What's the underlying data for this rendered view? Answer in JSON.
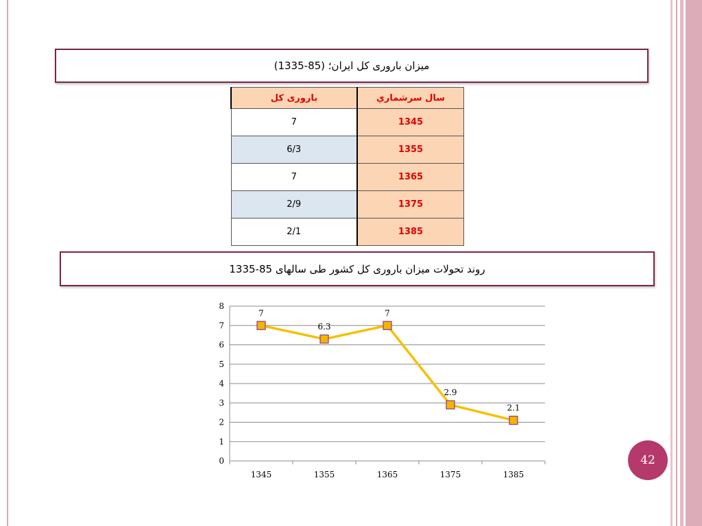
{
  "title1": "میزان باروری کل ایران؛ (85-1335)",
  "table": {
    "headers": {
      "year": "سال سرشماري",
      "tfr": "باروری کل"
    },
    "rows": [
      {
        "year": "1345",
        "tfr": "7"
      },
      {
        "year": "1355",
        "tfr": "6/3"
      },
      {
        "year": "1365",
        "tfr": "7"
      },
      {
        "year": "1375",
        "tfr": "2/9"
      },
      {
        "year": "1385",
        "tfr": "2/1"
      }
    ]
  },
  "title2": "روند تحولات میزان باروری کل کشور طی سالهای 85-1335",
  "chart_data": {
    "type": "line",
    "categories": [
      "1345",
      "1355",
      "1365",
      "1375",
      "1385"
    ],
    "series": [
      {
        "values": [
          7,
          6.3,
          7,
          2.9,
          2.1
        ],
        "color": "#f5c000",
        "marker_color": "#f5b400"
      }
    ],
    "data_labels": [
      "7",
      "6.3",
      "7",
      "2.9",
      "2.1"
    ],
    "ylim": [
      0,
      8
    ],
    "yticks": [
      0,
      1,
      2,
      3,
      4,
      5,
      6,
      7,
      8
    ],
    "grid": true,
    "legend": "none"
  },
  "page_number": "42",
  "colors": {
    "frame": "#7a2545",
    "header_fill": "#fcd5b4",
    "header_text": "#e00000",
    "alt_row": "#dce6f1",
    "badge": "#b5396a"
  }
}
